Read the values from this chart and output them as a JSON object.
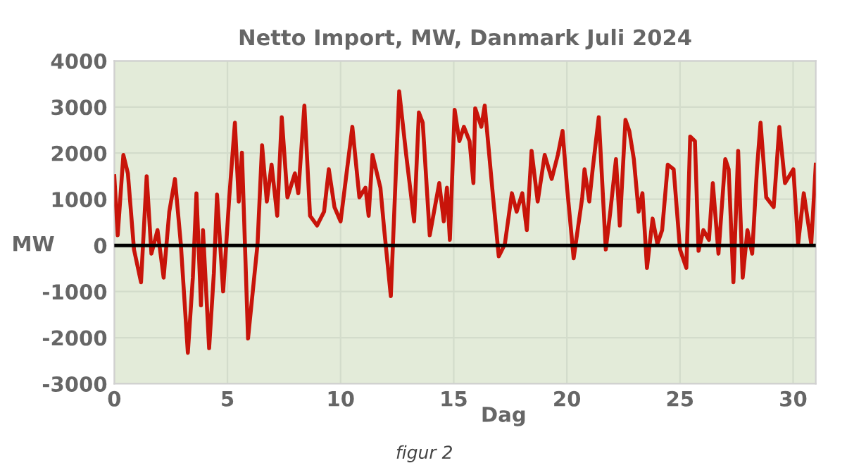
{
  "chart_data": {
    "type": "line",
    "title": "Netto Import, MW, Danmark Juli 2024",
    "xlabel": "Dag",
    "ylabel": "MW",
    "annotations": [
      "figur 2"
    ],
    "series": [
      {
        "color": "#c8140a",
        "x": [
          0.0,
          0.15,
          0.4,
          0.6,
          0.87,
          1.18,
          1.43,
          1.64,
          1.91,
          2.18,
          2.43,
          2.68,
          2.94,
          3.25,
          3.47,
          3.63,
          3.83,
          3.92,
          4.19,
          4.4,
          4.54,
          4.81,
          5.08,
          5.33,
          5.5,
          5.64,
          5.91,
          6.16,
          6.33,
          6.53,
          6.74,
          6.95,
          7.2,
          7.4,
          7.65,
          7.98,
          8.13,
          8.4,
          8.65,
          8.96,
          9.27,
          9.48,
          9.73,
          10.0,
          10.52,
          10.83,
          11.1,
          11.24,
          11.41,
          11.76,
          11.93,
          12.22,
          12.59,
          12.9,
          13.25,
          13.46,
          13.63,
          13.94,
          14.36,
          14.56,
          14.7,
          14.83,
          15.04,
          15.25,
          15.45,
          15.7,
          15.87,
          15.95,
          16.22,
          16.37,
          16.74,
          16.99,
          17.26,
          17.57,
          17.78,
          18.03,
          18.23,
          18.44,
          18.71,
          19.02,
          19.33,
          19.6,
          19.81,
          20.01,
          20.3,
          20.68,
          20.78,
          20.99,
          21.14,
          21.41,
          21.72,
          21.92,
          22.17,
          22.34,
          22.59,
          22.76,
          22.96,
          23.17,
          23.34,
          23.54,
          23.79,
          24.0,
          24.21,
          24.46,
          24.72,
          25.0,
          25.28,
          25.45,
          25.66,
          25.82,
          26.03,
          26.28,
          26.45,
          26.7,
          27.0,
          27.15,
          27.36,
          27.57,
          27.77,
          27.98,
          28.19,
          28.4,
          28.56,
          28.81,
          29.14,
          29.39,
          29.64,
          30.01,
          30.22,
          30.47,
          30.8,
          31.0
        ],
        "values": [
          1500,
          220,
          1960,
          1560,
          -90,
          -800,
          1500,
          -180,
          330,
          -700,
          730,
          1440,
          30,
          -2330,
          -700,
          1130,
          -1300,
          330,
          -2230,
          -600,
          1100,
          -1000,
          1040,
          2660,
          950,
          2010,
          -2020,
          -800,
          30,
          2170,
          950,
          1750,
          640,
          2780,
          1040,
          1560,
          1130,
          3030,
          640,
          430,
          730,
          1650,
          830,
          520,
          2570,
          1040,
          1250,
          640,
          1960,
          1250,
          330,
          -1100,
          3340,
          1960,
          520,
          2880,
          2660,
          220,
          1350,
          520,
          1250,
          120,
          2940,
          2260,
          2570,
          2260,
          1350,
          2970,
          2570,
          3030,
          1040,
          -240,
          30,
          1130,
          730,
          1130,
          330,
          2050,
          950,
          1960,
          1440,
          1960,
          2480,
          1250,
          -280,
          1040,
          1650,
          950,
          1650,
          2780,
          -90,
          730,
          1870,
          430,
          2720,
          2480,
          1870,
          730,
          1130,
          -490,
          580,
          30,
          330,
          1750,
          1650,
          -90,
          -490,
          2360,
          2260,
          -120,
          330,
          120,
          1350,
          -180,
          1870,
          1650,
          -800,
          2050,
          -700,
          330,
          -180,
          1650,
          2660,
          1040,
          830,
          2570,
          1350,
          1650,
          30,
          1130,
          30,
          1750
        ]
      }
    ],
    "xlim": [
      0,
      31
    ],
    "ylim": [
      -3000,
      4000
    ],
    "xticks": [
      0,
      5,
      10,
      15,
      20,
      25,
      30
    ],
    "yticks": [
      -3000,
      -2000,
      -1000,
      0,
      1000,
      2000,
      3000,
      4000
    ],
    "ref_lines": [
      {
        "axis": "y",
        "value": 0,
        "color": "#000000"
      }
    ],
    "grid": true,
    "marker": "none",
    "line_style": "solid"
  }
}
